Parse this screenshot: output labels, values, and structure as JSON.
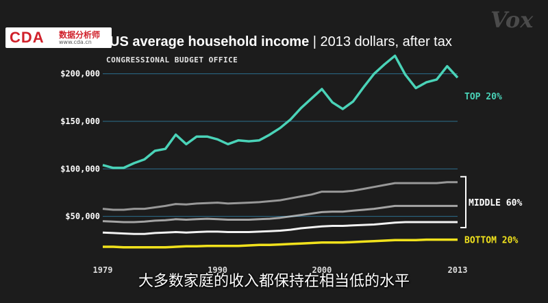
{
  "logo": {
    "main": "CDA",
    "cn": "数据分析师",
    "url": "www.cda.cn"
  },
  "brand": "Vox",
  "title": {
    "bold": "US average household income",
    "rest": " | 2013 dollars, after tax"
  },
  "source": "CONGRESSIONAL BUDGET OFFICE",
  "subtitle": "大多数家庭的收入都保持在相当低的水平",
  "chart_data": {
    "type": "line",
    "title": "US average household income | 2013 dollars, after tax",
    "x": [
      1979,
      1980,
      1981,
      1982,
      1983,
      1984,
      1985,
      1986,
      1987,
      1988,
      1989,
      1990,
      1991,
      1992,
      1993,
      1994,
      1995,
      1996,
      1997,
      1998,
      1999,
      2000,
      2001,
      2002,
      2003,
      2004,
      2005,
      2006,
      2007,
      2008,
      2009,
      2010,
      2011,
      2012,
      2013
    ],
    "x_tick_labels": [
      "1979",
      "1990",
      "2000",
      "2013"
    ],
    "y_tick_labels": [
      "$50,000",
      "$100,000",
      "$150,000",
      "$200,000"
    ],
    "ylim": [
      0,
      225000
    ],
    "grid": true,
    "colors": {
      "top": "#4ad3b8",
      "middle": "#ffffff",
      "bottom": "#f1e21c",
      "grid": "#2b6f8e"
    },
    "labels": {
      "top": "TOP 20%",
      "middle": "MIDDLE 60%",
      "bottom": "BOTTOM 20%"
    },
    "series": [
      {
        "name": "TOP 20%",
        "group": "top",
        "values": [
          104000,
          101000,
          101000,
          106000,
          110000,
          119000,
          121000,
          136000,
          126000,
          134000,
          134000,
          131000,
          126000,
          130000,
          129000,
          130000,
          136000,
          143000,
          152000,
          164000,
          174000,
          184000,
          170000,
          163000,
          171000,
          186000,
          200000,
          210000,
          219000,
          199000,
          185000,
          191000,
          194000,
          208000,
          196000
        ]
      },
      {
        "name": "MIDDLE 60% (upper)",
        "group": "middle",
        "values": [
          58000,
          57000,
          57000,
          58000,
          58000,
          59500,
          61000,
          63000,
          62500,
          63500,
          64000,
          64500,
          63500,
          64000,
          64500,
          65000,
          66000,
          67000,
          69000,
          71000,
          73000,
          76000,
          76000,
          76000,
          77000,
          79000,
          81000,
          83000,
          85000,
          85000,
          85000,
          85000,
          85000,
          86000,
          86000
        ]
      },
      {
        "name": "MIDDLE 60% (center)",
        "group": "middle",
        "values": [
          45000,
          44500,
          44000,
          44000,
          44500,
          45500,
          46000,
          47000,
          46500,
          47000,
          47500,
          47000,
          46500,
          46500,
          46500,
          47000,
          47500,
          48500,
          50000,
          51500,
          53000,
          54500,
          55000,
          55000,
          56000,
          57000,
          58000,
          59500,
          61000,
          61000,
          61000,
          61000,
          61000,
          61000,
          61000
        ]
      },
      {
        "name": "MIDDLE 60% (lower)",
        "group": "middle",
        "values": [
          33000,
          32500,
          32000,
          31500,
          31500,
          32500,
          33000,
          33500,
          33000,
          33500,
          34000,
          34000,
          33500,
          33500,
          33500,
          34000,
          34500,
          35000,
          36000,
          37500,
          38500,
          39500,
          40000,
          40000,
          40500,
          41000,
          41500,
          42500,
          43500,
          44000,
          44000,
          44000,
          44000,
          44000,
          44000
        ]
      },
      {
        "name": "BOTTOM 20%",
        "group": "bottom",
        "values": [
          18000,
          18000,
          17500,
          17500,
          17500,
          17500,
          17500,
          18000,
          18500,
          18500,
          19000,
          19000,
          19000,
          19000,
          19500,
          20000,
          20000,
          20500,
          21000,
          21500,
          22000,
          22500,
          22500,
          22500,
          23000,
          23500,
          24000,
          24500,
          25000,
          25000,
          25000,
          25500,
          25500,
          25500,
          25500
        ]
      }
    ]
  }
}
